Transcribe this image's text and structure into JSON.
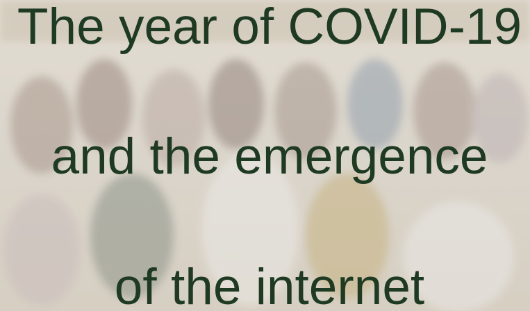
{
  "title_lines": [
    "The year of COVID-19",
    "and the emergence",
    "of the internet"
  ]
}
